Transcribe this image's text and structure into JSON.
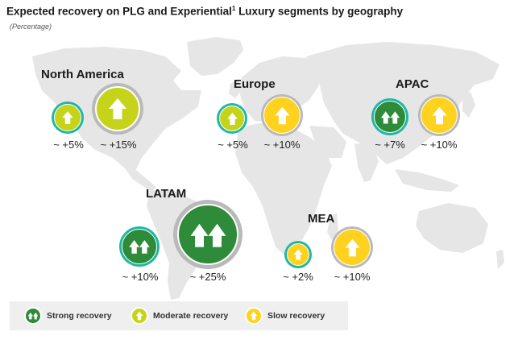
{
  "title": {
    "main": "Expected recovery on PLG and Experiential",
    "superscript": "1",
    "rest": " Luxury segments by geography",
    "subtitle": "(Percentage)"
  },
  "colors": {
    "strong": "#2e8b3a",
    "moderate": "#c5d41b",
    "slow": "#ffd21f",
    "ring_teal": "#1fb7a6",
    "ring_gray": "#b9b9b9",
    "map_land": "#e6e6e6",
    "legend_bg": "#efefef"
  },
  "regions": {
    "north_america": {
      "name": "North America",
      "plg": {
        "value": "~ +5%",
        "category": "moderate",
        "icon": "single-arrow-icon"
      },
      "experiential": {
        "value": "~ +15%",
        "category": "moderate",
        "icon": "single-arrow-icon"
      }
    },
    "europe": {
      "name": "Europe",
      "plg": {
        "value": "~ +5%",
        "category": "moderate",
        "icon": "single-arrow-icon"
      },
      "experiential": {
        "value": "~ +10%",
        "category": "slow",
        "icon": "single-arrow-icon"
      }
    },
    "apac": {
      "name": "APAC",
      "plg": {
        "value": "~ +7%",
        "category": "strong",
        "icon": "double-arrow-icon"
      },
      "experiential": {
        "value": "~ +10%",
        "category": "slow",
        "icon": "single-arrow-icon"
      }
    },
    "latam": {
      "name": "LATAM",
      "plg": {
        "value": "~ +10%",
        "category": "strong",
        "icon": "double-arrow-icon"
      },
      "experiential": {
        "value": "~ +25%",
        "category": "strong",
        "icon": "double-arrow-icon"
      }
    },
    "mea": {
      "name": "MEA",
      "plg": {
        "value": "~ +2%",
        "category": "slow",
        "icon": "single-arrow-icon"
      },
      "experiential": {
        "value": "~ +10%",
        "category": "slow",
        "icon": "single-arrow-icon"
      }
    }
  },
  "legend": {
    "strong": "Strong recovery",
    "moderate": "Moderate recovery",
    "slow": "Slow recovery"
  }
}
